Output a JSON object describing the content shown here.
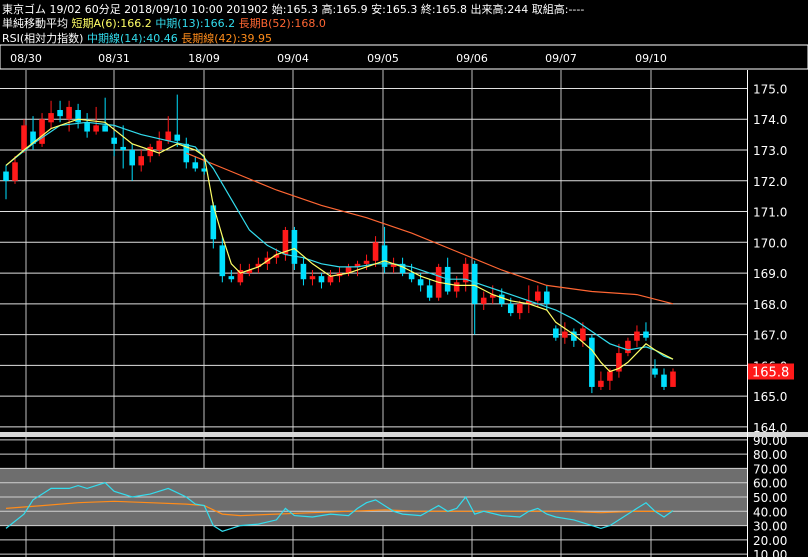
{
  "header": {
    "line1": "東京ゴム 19/02 60分足 2018/09/10 10:00 201902 始:165.3 高:165.9 安:165.3 終:165.8 出来高:244 取組高:----",
    "ma_title": "単純移動平均",
    "ma_short": "短期A(6):166.2",
    "ma_mid": "中期(13):166.2",
    "ma_long": "長期B(52):168.0",
    "rsi_title": "RSI(相対力指数)",
    "rsi_mid": "中期線(14):40.46",
    "rsi_long": "長期線(42):39.95"
  },
  "colors": {
    "up": "#ff1a1a",
    "down": "#00e0ff",
    "ma_short": "#ffff66",
    "ma_mid": "#33ddee",
    "ma_long": "#ff6633",
    "rsi_mid": "#33ddee",
    "rsi_long": "#ff8c1a",
    "price_tag_bg": "#ff1a1a"
  },
  "price_tag": "165.8",
  "chart_data": [
    {
      "type": "candlestick",
      "x_ticks": [
        "08/30",
        "08/31",
        "18/09",
        "09/04",
        "09/05",
        "09/06",
        "09/07",
        "09/10"
      ],
      "y_ticks": [
        "175.0",
        "174.0",
        "173.0",
        "172.0",
        "171.0",
        "170.0",
        "169.0",
        "168.0",
        "167.0",
        "166.0",
        "165.0",
        "164.0"
      ],
      "ylim": [
        163.9,
        175.6
      ],
      "grid": true,
      "last_close": 165.8,
      "candles": [
        [
          172.3,
          172.5,
          171.4,
          172.0
        ],
        [
          172.0,
          172.8,
          171.9,
          172.6
        ],
        [
          173.0,
          174.0,
          172.9,
          173.8
        ],
        [
          173.6,
          174.1,
          173.0,
          173.2
        ],
        [
          173.2,
          174.2,
          173.1,
          174.0
        ],
        [
          173.9,
          174.6,
          173.7,
          174.2
        ],
        [
          174.3,
          174.6,
          173.9,
          174.1
        ],
        [
          174.0,
          174.6,
          173.6,
          174.4
        ],
        [
          174.3,
          174.5,
          173.7,
          173.9
        ],
        [
          173.9,
          174.2,
          173.4,
          173.6
        ],
        [
          173.6,
          174.4,
          173.5,
          173.8
        ],
        [
          173.8,
          174.7,
          173.6,
          173.6
        ],
        [
          173.4,
          173.6,
          172.8,
          173.2
        ],
        [
          173.1,
          173.8,
          172.4,
          173.0
        ],
        [
          173.0,
          173.2,
          172.0,
          172.5
        ],
        [
          172.5,
          173.0,
          172.3,
          172.8
        ],
        [
          172.8,
          173.2,
          172.6,
          173.1
        ],
        [
          173.0,
          173.6,
          172.8,
          173.3
        ],
        [
          173.3,
          174.1,
          173.2,
          173.6
        ],
        [
          173.5,
          174.8,
          173.1,
          173.3
        ],
        [
          173.2,
          173.4,
          172.4,
          172.6
        ],
        [
          172.6,
          172.8,
          172.3,
          172.4
        ],
        [
          172.4,
          172.6,
          172.2,
          172.3
        ],
        [
          171.2,
          171.3,
          169.8,
          170.1
        ],
        [
          169.9,
          170.2,
          168.7,
          168.9
        ],
        [
          168.9,
          169.1,
          168.7,
          168.8
        ],
        [
          168.7,
          169.3,
          168.6,
          169.1
        ],
        [
          169.0,
          169.3,
          168.9,
          169.1
        ],
        [
          169.2,
          169.5,
          169.0,
          169.3
        ],
        [
          169.3,
          169.7,
          169.1,
          169.5
        ],
        [
          169.5,
          169.8,
          169.3,
          169.6
        ],
        [
          169.6,
          170.5,
          169.4,
          170.4
        ],
        [
          170.4,
          170.5,
          169.1,
          169.3
        ],
        [
          169.3,
          169.5,
          168.6,
          168.8
        ],
        [
          168.8,
          169.1,
          168.6,
          168.9
        ],
        [
          168.9,
          169.0,
          168.5,
          168.7
        ],
        [
          168.7,
          169.1,
          168.6,
          168.9
        ],
        [
          168.9,
          169.2,
          168.7,
          169.0
        ],
        [
          169.0,
          169.3,
          168.9,
          169.2
        ],
        [
          169.2,
          169.4,
          168.9,
          169.3
        ],
        [
          169.3,
          169.6,
          169.1,
          169.4
        ],
        [
          169.4,
          170.2,
          169.2,
          170.0
        ],
        [
          169.9,
          170.5,
          169.0,
          169.2
        ],
        [
          169.2,
          169.5,
          169.0,
          169.3
        ],
        [
          169.3,
          169.5,
          168.9,
          169.0
        ],
        [
          169.0,
          169.3,
          168.7,
          168.8
        ],
        [
          168.8,
          169.0,
          168.4,
          168.6
        ],
        [
          168.6,
          168.8,
          168.1,
          168.2
        ],
        [
          168.2,
          169.3,
          168.1,
          169.2
        ],
        [
          169.2,
          169.5,
          168.3,
          168.4
        ],
        [
          168.4,
          168.9,
          168.2,
          168.7
        ],
        [
          168.7,
          169.5,
          168.4,
          169.3
        ],
        [
          169.3,
          169.4,
          167.0,
          168.0
        ],
        [
          168.0,
          168.4,
          167.8,
          168.2
        ],
        [
          168.2,
          168.6,
          168.0,
          168.3
        ],
        [
          168.3,
          168.5,
          167.9,
          168.0
        ],
        [
          168.0,
          168.2,
          167.6,
          167.7
        ],
        [
          167.7,
          168.1,
          167.5,
          168.0
        ],
        [
          168.0,
          168.6,
          167.7,
          168.1
        ],
        [
          168.1,
          168.6,
          167.9,
          168.4
        ],
        [
          168.4,
          168.6,
          167.8,
          168.0
        ],
        [
          167.2,
          167.3,
          166.8,
          166.9
        ],
        [
          166.9,
          167.4,
          166.7,
          167.1
        ],
        [
          167.1,
          167.2,
          166.6,
          166.8
        ],
        [
          166.8,
          167.4,
          166.6,
          167.2
        ],
        [
          166.9,
          167.0,
          165.1,
          165.3
        ],
        [
          165.3,
          165.8,
          165.2,
          165.5
        ],
        [
          165.5,
          165.9,
          165.2,
          165.8
        ],
        [
          165.8,
          166.7,
          165.6,
          166.4
        ],
        [
          166.4,
          166.9,
          166.3,
          166.8
        ],
        [
          166.8,
          167.3,
          166.6,
          167.1
        ],
        [
          167.1,
          167.4,
          166.8,
          166.9
        ],
        [
          165.9,
          166.2,
          165.6,
          165.7
        ],
        [
          165.7,
          165.9,
          165.2,
          165.3
        ],
        [
          165.3,
          165.9,
          165.3,
          165.8
        ]
      ],
      "ma_short": [
        [
          0,
          172.5
        ],
        [
          2,
          173.0
        ],
        [
          5,
          173.7
        ],
        [
          8,
          174.0
        ],
        [
          11,
          173.9
        ],
        [
          14,
          173.2
        ],
        [
          17,
          172.9
        ],
        [
          19,
          173.2
        ],
        [
          21,
          173.0
        ],
        [
          22,
          172.8
        ],
        [
          23,
          171.2
        ],
        [
          24,
          170.2
        ],
        [
          25,
          169.3
        ],
        [
          26,
          169.0
        ],
        [
          28,
          169.2
        ],
        [
          30,
          169.6
        ],
        [
          32,
          169.8
        ],
        [
          34,
          169.3
        ],
        [
          36,
          168.9
        ],
        [
          38,
          169.0
        ],
        [
          40,
          169.2
        ],
        [
          42,
          169.4
        ],
        [
          44,
          169.2
        ],
        [
          46,
          168.9
        ],
        [
          48,
          168.7
        ],
        [
          50,
          168.6
        ],
        [
          52,
          168.6
        ],
        [
          54,
          168.3
        ],
        [
          56,
          168.1
        ],
        [
          58,
          168.0
        ],
        [
          60,
          167.8
        ],
        [
          61,
          167.4
        ],
        [
          63,
          167.0
        ],
        [
          65,
          166.5
        ],
        [
          66,
          166.1
        ],
        [
          67,
          165.8
        ],
        [
          68,
          165.9
        ],
        [
          69,
          166.1
        ],
        [
          70,
          166.4
        ],
        [
          71,
          166.7
        ],
        [
          72,
          166.5
        ],
        [
          74,
          166.2
        ]
      ],
      "ma_mid": [
        [
          0,
          172.5
        ],
        [
          3,
          173.2
        ],
        [
          6,
          173.8
        ],
        [
          9,
          173.9
        ],
        [
          12,
          173.8
        ],
        [
          15,
          173.5
        ],
        [
          18,
          173.3
        ],
        [
          21,
          173.1
        ],
        [
          23,
          172.4
        ],
        [
          25,
          171.4
        ],
        [
          27,
          170.4
        ],
        [
          29,
          169.9
        ],
        [
          31,
          169.6
        ],
        [
          33,
          169.5
        ],
        [
          35,
          169.3
        ],
        [
          37,
          169.2
        ],
        [
          39,
          169.2
        ],
        [
          41,
          169.3
        ],
        [
          43,
          169.3
        ],
        [
          45,
          169.2
        ],
        [
          47,
          169.0
        ],
        [
          49,
          168.8
        ],
        [
          51,
          168.8
        ],
        [
          53,
          168.6
        ],
        [
          55,
          168.4
        ],
        [
          57,
          168.2
        ],
        [
          59,
          168.0
        ],
        [
          61,
          167.8
        ],
        [
          63,
          167.5
        ],
        [
          65,
          167.1
        ],
        [
          67,
          166.7
        ],
        [
          69,
          166.5
        ],
        [
          71,
          166.6
        ],
        [
          72,
          166.5
        ],
        [
          73,
          166.3
        ],
        [
          74,
          166.2
        ]
      ],
      "ma_long": [
        [
          20,
          172.9
        ],
        [
          25,
          172.3
        ],
        [
          30,
          171.7
        ],
        [
          35,
          171.2
        ],
        [
          40,
          170.8
        ],
        [
          45,
          170.3
        ],
        [
          50,
          169.7
        ],
        [
          55,
          169.1
        ],
        [
          60,
          168.6
        ],
        [
          65,
          168.4
        ],
        [
          70,
          168.3
        ],
        [
          74,
          168.0
        ]
      ]
    },
    {
      "type": "line",
      "name": "RSI",
      "y_ticks": [
        "90.00",
        "80.00",
        "70.00",
        "60.00",
        "50.00",
        "40.00",
        "30.00",
        "20.00",
        "10.00"
      ],
      "ylim": [
        8,
        92
      ],
      "bands": [
        [
          70,
          30
        ]
      ],
      "rsi_mid": [
        [
          0,
          28
        ],
        [
          2,
          38
        ],
        [
          3,
          48
        ],
        [
          5,
          56
        ],
        [
          7,
          56
        ],
        [
          8,
          58
        ],
        [
          9,
          56
        ],
        [
          11,
          60
        ],
        [
          12,
          54
        ],
        [
          14,
          50
        ],
        [
          16,
          52
        ],
        [
          18,
          56
        ],
        [
          20,
          50
        ],
        [
          21,
          45
        ],
        [
          22,
          44
        ],
        [
          23,
          30
        ],
        [
          24,
          26
        ],
        [
          26,
          30
        ],
        [
          28,
          31
        ],
        [
          30,
          34
        ],
        [
          31,
          42
        ],
        [
          32,
          37
        ],
        [
          34,
          36
        ],
        [
          36,
          38
        ],
        [
          38,
          37
        ],
        [
          39,
          42
        ],
        [
          40,
          46
        ],
        [
          41,
          48
        ],
        [
          42,
          44
        ],
        [
          43,
          40
        ],
        [
          44,
          38
        ],
        [
          46,
          37
        ],
        [
          48,
          44
        ],
        [
          49,
          40
        ],
        [
          50,
          42
        ],
        [
          51,
          50
        ],
        [
          52,
          38
        ],
        [
          53,
          40
        ],
        [
          55,
          37
        ],
        [
          57,
          36
        ],
        [
          58,
          40
        ],
        [
          59,
          42
        ],
        [
          60,
          38
        ],
        [
          61,
          36
        ],
        [
          63,
          34
        ],
        [
          65,
          30
        ],
        [
          66,
          28
        ],
        [
          67,
          30
        ],
        [
          68,
          34
        ],
        [
          70,
          42
        ],
        [
          71,
          46
        ],
        [
          72,
          40
        ],
        [
          73,
          36
        ],
        [
          74,
          40.46
        ]
      ],
      "rsi_long": [
        [
          0,
          42
        ],
        [
          4,
          44
        ],
        [
          8,
          46
        ],
        [
          12,
          47
        ],
        [
          16,
          46
        ],
        [
          20,
          45
        ],
        [
          22,
          44
        ],
        [
          24,
          38
        ],
        [
          26,
          37
        ],
        [
          30,
          38
        ],
        [
          34,
          39
        ],
        [
          38,
          40
        ],
        [
          42,
          41
        ],
        [
          46,
          40
        ],
        [
          50,
          40
        ],
        [
          54,
          40
        ],
        [
          58,
          40
        ],
        [
          62,
          40
        ],
        [
          66,
          39
        ],
        [
          70,
          40
        ],
        [
          74,
          39.95
        ]
      ]
    }
  ]
}
